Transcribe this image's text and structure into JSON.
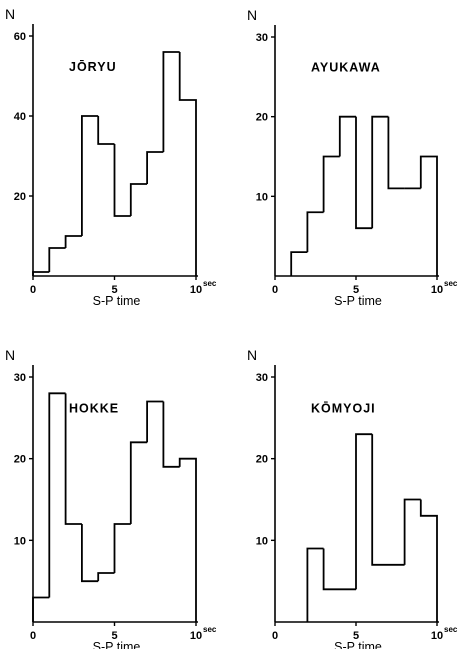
{
  "chart_data": [
    {
      "type": "histogram",
      "title": "JŌRYU",
      "ylabel": "N",
      "xlabel": "S-P time",
      "x_unit": "sec",
      "xlim": [
        0,
        10
      ],
      "ylim": [
        0,
        60
      ],
      "x_ticks": [
        0,
        5,
        10
      ],
      "y_ticks": [
        20,
        40,
        60
      ],
      "bin_edges": [
        0,
        1,
        2,
        3,
        4,
        5,
        6,
        7,
        8,
        9,
        10
      ],
      "values": [
        1,
        7,
        10,
        40,
        33,
        15,
        23,
        31,
        56,
        44
      ]
    },
    {
      "type": "histogram",
      "title": "AYUKAWA",
      "ylabel": "N",
      "xlabel": "S-P time",
      "x_unit": "sec",
      "xlim": [
        0,
        10
      ],
      "ylim": [
        0,
        30
      ],
      "x_ticks": [
        0,
        5,
        10
      ],
      "y_ticks": [
        10,
        20,
        30
      ],
      "bin_edges": [
        1,
        2,
        3,
        4,
        5,
        6,
        7,
        8,
        9,
        10
      ],
      "values": [
        3,
        8,
        15,
        20,
        6,
        20,
        11,
        11,
        15
      ]
    },
    {
      "type": "histogram",
      "title": "HOKKE",
      "ylabel": "N",
      "xlabel": "S-P time",
      "x_unit": "sec",
      "xlim": [
        0,
        10
      ],
      "ylim": [
        0,
        30
      ],
      "x_ticks": [
        0,
        5,
        10
      ],
      "y_ticks": [
        10,
        20,
        30
      ],
      "bin_edges": [
        0,
        1,
        2,
        3,
        4,
        5,
        6,
        7,
        8,
        9,
        10
      ],
      "values": [
        3,
        28,
        12,
        5,
        6,
        12,
        22,
        27,
        19,
        20
      ]
    },
    {
      "type": "histogram",
      "title": "KŌMYOJI",
      "ylabel": "N",
      "xlabel": "S-P time",
      "x_unit": "sec",
      "xlim": [
        0,
        10
      ],
      "ylim": [
        0,
        30
      ],
      "x_ticks": [
        0,
        5,
        10
      ],
      "y_ticks": [
        10,
        20,
        30
      ],
      "bin_edges": [
        2,
        3,
        5,
        6,
        8,
        9,
        10
      ],
      "values": [
        9,
        4,
        23,
        7,
        15,
        13
      ]
    }
  ]
}
